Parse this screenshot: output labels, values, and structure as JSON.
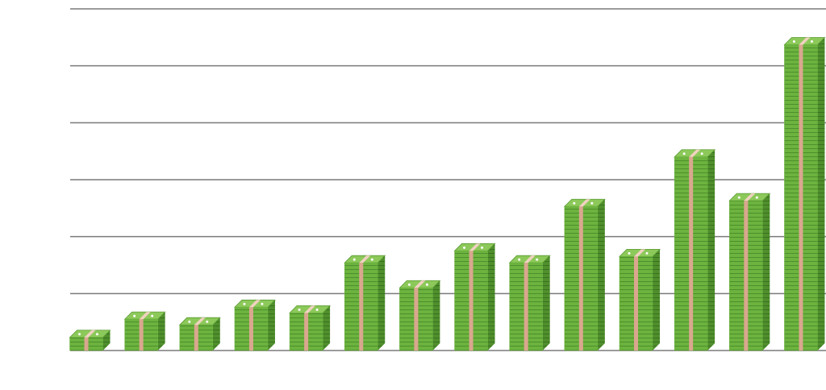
{
  "chart_data": {
    "type": "bar",
    "categories": [
      null,
      null,
      null,
      null,
      null,
      null,
      null,
      null,
      null,
      null,
      null,
      null,
      null,
      null
    ],
    "values": [
      0.23,
      0.55,
      0.45,
      0.76,
      0.66,
      1.54,
      1.1,
      1.75,
      1.54,
      2.53,
      1.65,
      3.4,
      2.63,
      5.37
    ],
    "color": "#6cb33f",
    "ylim": [
      0,
      6
    ],
    "yticks": [
      0,
      1,
      2,
      3,
      4,
      5,
      6
    ],
    "grid": true
  }
}
